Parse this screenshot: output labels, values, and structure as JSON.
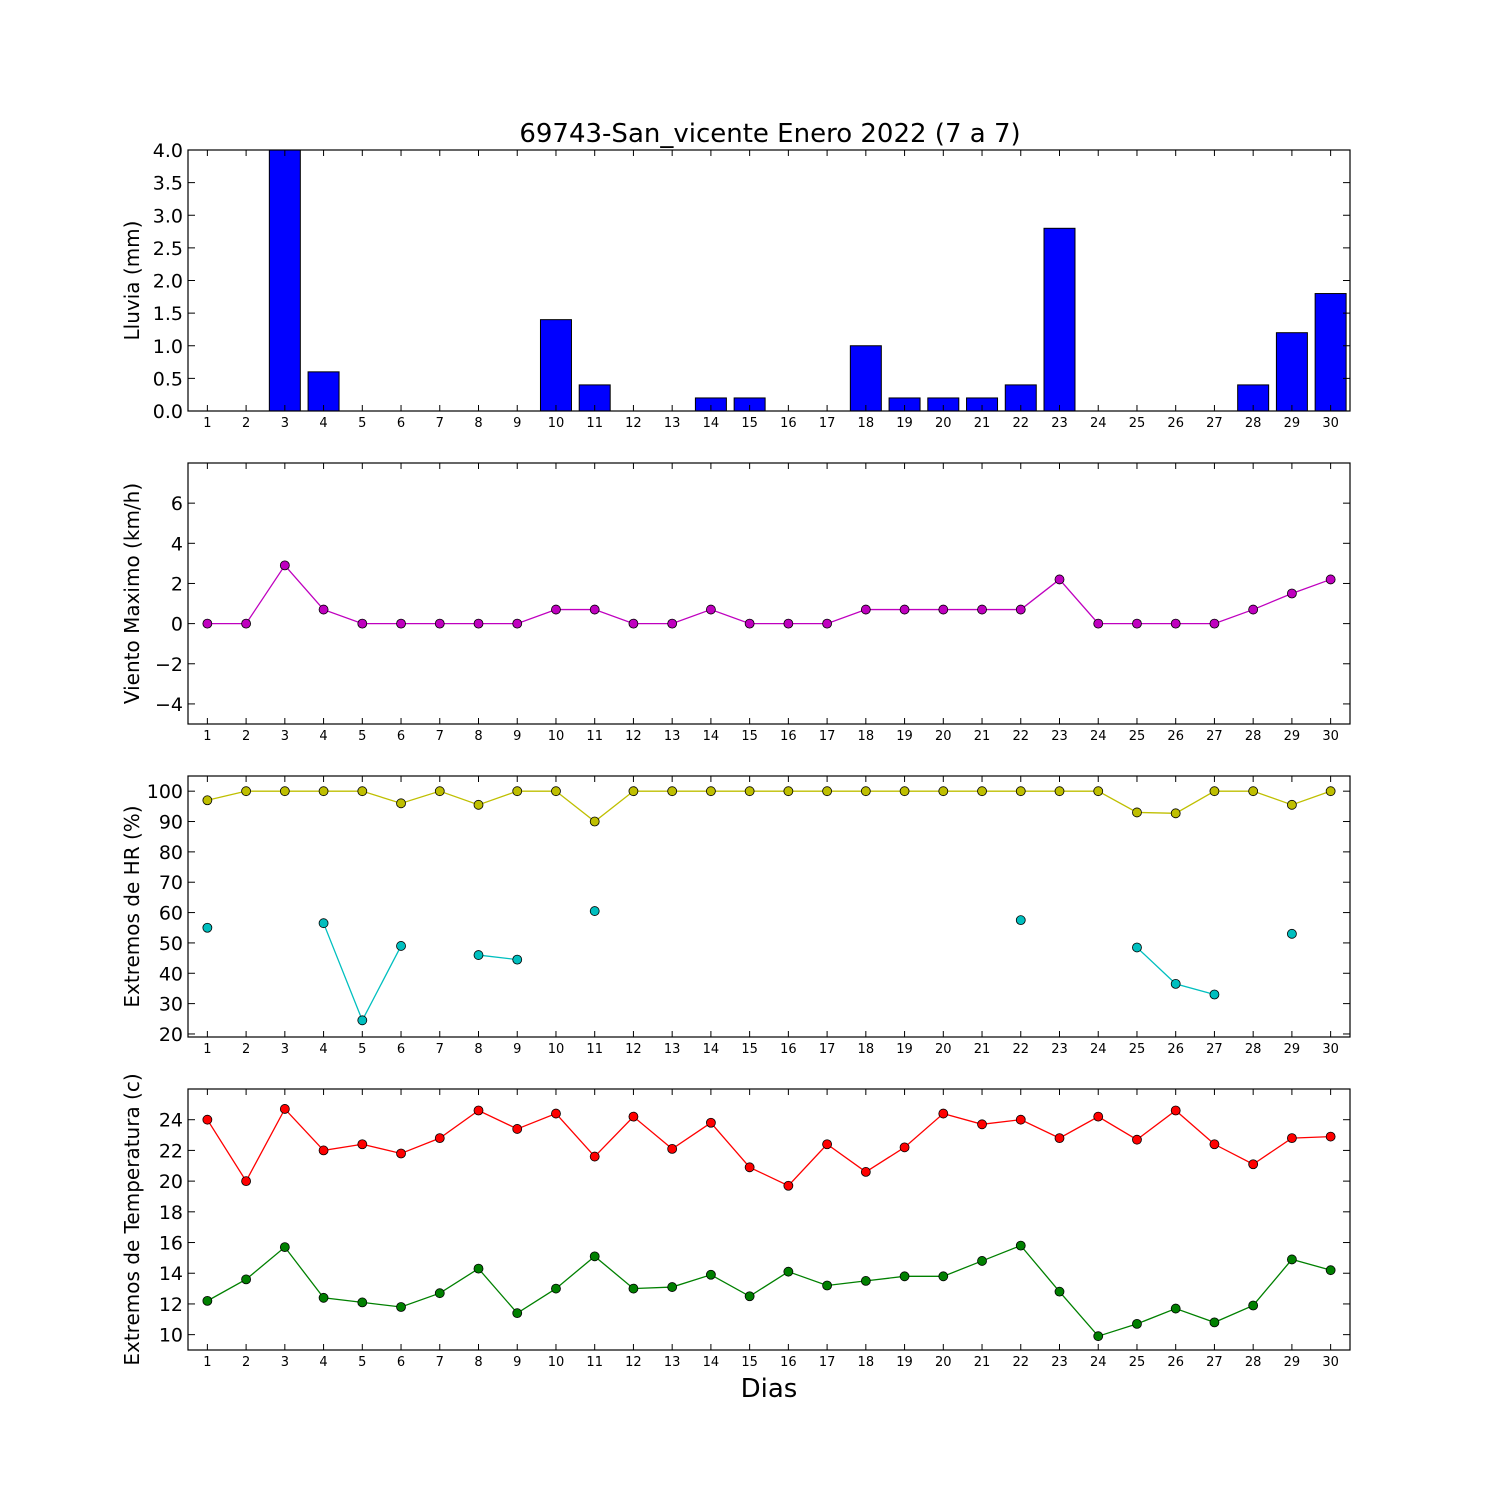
{
  "title": "69743-San_vicente Enero 2022  (7 a 7)",
  "xlabel": "Dias",
  "chart_data": [
    {
      "type": "bar",
      "ylabel": "Lluvia (mm)",
      "ylim": [
        0,
        4
      ],
      "yticks": [
        0,
        0.5,
        1,
        1.5,
        2,
        2.5,
        3,
        3.5,
        4
      ],
      "ytick_decimals": 1,
      "xticks": [
        1,
        2,
        3,
        4,
        5,
        6,
        7,
        8,
        9,
        10,
        11,
        12,
        13,
        14,
        15,
        16,
        17,
        18,
        19,
        20,
        21,
        22,
        23,
        24,
        25,
        26,
        27,
        28,
        29,
        30
      ],
      "series": [
        {
          "color": "#0000ff",
          "x": [
            1,
            2,
            3,
            4,
            5,
            6,
            7,
            8,
            9,
            10,
            11,
            12,
            13,
            14,
            15,
            16,
            17,
            18,
            19,
            20,
            21,
            22,
            23,
            24,
            25,
            26,
            27,
            28,
            29,
            30
          ],
          "values": [
            0,
            0,
            4.0,
            0.6,
            0,
            0,
            0,
            0,
            0,
            1.4,
            0.4,
            0,
            0,
            0.2,
            0.2,
            0,
            0,
            1.0,
            0.2,
            0.2,
            0.2,
            0.4,
            2.8,
            0,
            0,
            0,
            0,
            0.4,
            1.2,
            1.8
          ]
        }
      ]
    },
    {
      "type": "line",
      "ylabel": "Viento Maximo (km/h)",
      "ylim": [
        -5,
        8
      ],
      "yticks": [
        -4,
        -2,
        0,
        2,
        4,
        6
      ],
      "ytick_decimals": 0,
      "xticks": [
        1,
        2,
        3,
        4,
        5,
        6,
        7,
        8,
        9,
        10,
        11,
        12,
        13,
        14,
        15,
        16,
        17,
        18,
        19,
        20,
        21,
        22,
        23,
        24,
        25,
        26,
        27,
        28,
        29,
        30
      ],
      "series": [
        {
          "color": "#bf00bf",
          "x": [
            1,
            2,
            3,
            4,
            5,
            6,
            7,
            8,
            9,
            10,
            11,
            12,
            13,
            14,
            15,
            16,
            17,
            18,
            19,
            20,
            21,
            22,
            23,
            24,
            25,
            26,
            27,
            28,
            29,
            30
          ],
          "values": [
            0,
            0,
            2.9,
            0.7,
            0,
            0,
            0,
            0,
            0,
            0.7,
            0.7,
            0,
            0,
            0.7,
            0,
            0,
            0,
            0.7,
            0.7,
            0.7,
            0.7,
            0.7,
            2.2,
            0,
            0,
            0,
            0,
            0.7,
            1.5,
            2.2
          ]
        }
      ]
    },
    {
      "type": "line",
      "ylabel": "Extremos de HR (%)",
      "ylim": [
        19,
        105
      ],
      "yticks": [
        20,
        30,
        40,
        50,
        60,
        70,
        80,
        90,
        100
      ],
      "ytick_decimals": 0,
      "xticks": [
        1,
        2,
        3,
        4,
        5,
        6,
        7,
        8,
        9,
        10,
        11,
        12,
        13,
        14,
        15,
        16,
        17,
        18,
        19,
        20,
        21,
        22,
        23,
        24,
        25,
        26,
        27,
        28,
        29,
        30
      ],
      "series": [
        {
          "color": "#bfbf00",
          "x": [
            1,
            2,
            3,
            4,
            5,
            6,
            7,
            8,
            9,
            10,
            11,
            12,
            13,
            14,
            15,
            16,
            17,
            18,
            19,
            20,
            21,
            22,
            23,
            24,
            25,
            26,
            27,
            28,
            29,
            30
          ],
          "values": [
            97,
            100,
            100,
            100,
            100,
            96,
            100,
            95.5,
            100,
            100,
            90,
            100,
            100,
            100,
            100,
            100,
            100,
            100,
            100,
            100,
            100,
            100,
            100,
            100,
            93,
            92.7,
            100,
            100,
            95.5,
            100
          ]
        },
        {
          "color": "#00bfbf",
          "x": [
            1,
            2,
            3,
            4,
            5,
            6,
            7,
            8,
            9,
            10,
            11,
            12,
            13,
            14,
            15,
            16,
            17,
            18,
            19,
            20,
            21,
            22,
            23,
            24,
            25,
            26,
            27,
            28,
            29,
            30
          ],
          "values": [
            55,
            null,
            null,
            56.5,
            24.5,
            49,
            null,
            46,
            44.5,
            null,
            60.5,
            null,
            null,
            null,
            null,
            null,
            null,
            null,
            null,
            null,
            null,
            57.5,
            null,
            null,
            48.5,
            36.5,
            33,
            null,
            53,
            null
          ]
        }
      ]
    },
    {
      "type": "line",
      "ylabel": "Extremos de Temperatura (c)",
      "ylim": [
        9,
        26
      ],
      "yticks": [
        10,
        12,
        14,
        16,
        18,
        20,
        22,
        24
      ],
      "ytick_decimals": 0,
      "xticks": [
        1,
        2,
        3,
        4,
        5,
        6,
        7,
        8,
        9,
        10,
        11,
        12,
        13,
        14,
        15,
        16,
        17,
        18,
        19,
        20,
        21,
        22,
        23,
        24,
        25,
        26,
        27,
        28,
        29,
        30
      ],
      "series": [
        {
          "color": "#ff0000",
          "x": [
            1,
            2,
            3,
            4,
            5,
            6,
            7,
            8,
            9,
            10,
            11,
            12,
            13,
            14,
            15,
            16,
            17,
            18,
            19,
            20,
            21,
            22,
            23,
            24,
            25,
            26,
            27,
            28,
            29,
            30
          ],
          "values": [
            24,
            20,
            24.7,
            22,
            22.4,
            21.8,
            22.8,
            24.6,
            23.4,
            24.4,
            21.6,
            24.2,
            22.1,
            23.8,
            20.9,
            19.7,
            22.4,
            20.6,
            22.2,
            24.4,
            23.7,
            24,
            22.8,
            24.2,
            22.7,
            24.6,
            22.4,
            21.1,
            22.8,
            22.9
          ]
        },
        {
          "color": "#008000",
          "x": [
            1,
            2,
            3,
            4,
            5,
            6,
            7,
            8,
            9,
            10,
            11,
            12,
            13,
            14,
            15,
            16,
            17,
            18,
            19,
            20,
            21,
            22,
            23,
            24,
            25,
            26,
            27,
            28,
            29,
            30
          ],
          "values": [
            12.2,
            13.6,
            15.7,
            12.4,
            12.1,
            11.8,
            12.7,
            14.3,
            11.4,
            13,
            15.1,
            13,
            13.1,
            13.9,
            12.5,
            14.1,
            13.2,
            13.5,
            13.8,
            13.8,
            14.8,
            15.8,
            12.8,
            9.9,
            10.7,
            11.7,
            10.8,
            11.9,
            14.9,
            14.2
          ]
        }
      ]
    }
  ]
}
